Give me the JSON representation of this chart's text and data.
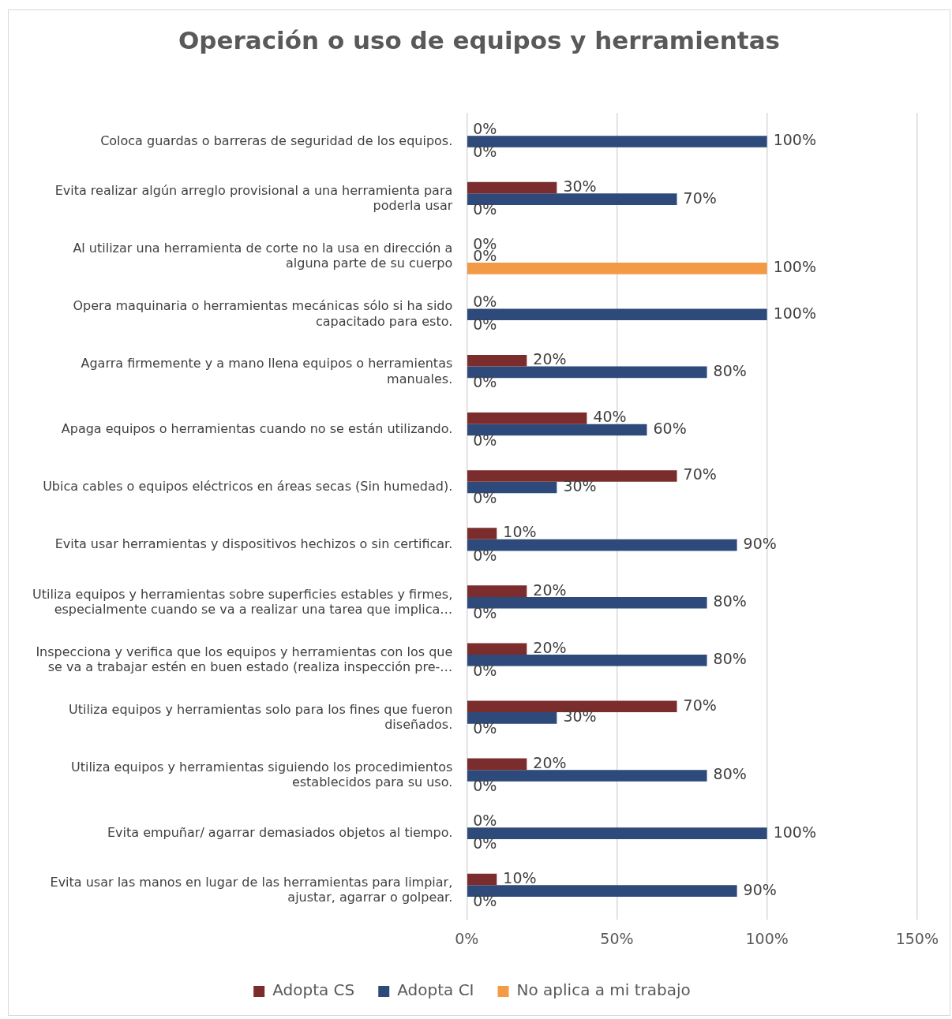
{
  "chart_data": {
    "type": "bar",
    "orientation": "horizontal",
    "title": "Operación o uso de equipos y herramientas",
    "categories": [
      "Coloca guardas o barreras de seguridad de los equipos.",
      "Evita realizar algún arreglo provisional a una herramienta para poderla usar",
      "Al utilizar una herramienta de corte no la usa en dirección a alguna parte de su cuerpo",
      "Opera maquinaria o herramientas mecánicas sólo si ha sido capacitado para esto.",
      "Agarra firmemente y a mano llena equipos o herramientas manuales.",
      "Apaga equipos o herramientas cuando no se están utilizando.",
      "Ubica cables o equipos eléctricos en áreas secas (Sin humedad).",
      "Evita usar herramientas y dispositivos hechizos o sin certificar.",
      "Utiliza equipos y herramientas sobre superficies estables y firmes, especialmente cuando se va a realizar una tarea que implica…",
      "Inspecciona y verifica que los equipos y herramientas con los que se va a trabajar estén en buen estado (realiza inspección pre-…",
      "Utiliza equipos y herramientas solo para los fines que fueron diseñados.",
      "Utiliza equipos y herramientas siguiendo los procedimientos establecidos para su uso.",
      "Evita empuñar/ agarrar demasiados objetos al tiempo.",
      "Evita usar las manos en lugar de las herramientas para limpiar, ajustar, agarrar o golpear."
    ],
    "series": [
      {
        "name": "Adopta CS",
        "color": "#7b2c2c",
        "values": [
          0,
          30,
          0,
          0,
          20,
          40,
          70,
          10,
          20,
          20,
          70,
          20,
          0,
          10
        ],
        "value_labels": [
          "0%",
          "30%",
          "0%",
          "0%",
          "20%",
          "40%",
          "70%",
          "10%",
          "20%",
          "20%",
          "70%",
          "20%",
          "0%",
          "10%"
        ]
      },
      {
        "name": "Adopta CI",
        "color": "#2e4a7a",
        "values": [
          100,
          70,
          0,
          100,
          80,
          60,
          30,
          90,
          80,
          80,
          30,
          80,
          100,
          90
        ],
        "value_labels": [
          "100%",
          "70%",
          "0%",
          "100%",
          "80%",
          "60%",
          "30%",
          "90%",
          "80%",
          "80%",
          "30%",
          "80%",
          "100%",
          "90%"
        ]
      },
      {
        "name": "No aplica a mi trabajo",
        "color": "#f29a45",
        "values": [
          0,
          0,
          100,
          0,
          0,
          0,
          0,
          0,
          0,
          0,
          0,
          0,
          0,
          0
        ],
        "value_labels": [
          "0%",
          "0%",
          "100%",
          "0%",
          "0%",
          "0%",
          "0%",
          "0%",
          "0%",
          "0%",
          "0%",
          "0%",
          "0%",
          "0%"
        ]
      }
    ],
    "xlim": [
      0,
      150
    ],
    "xticks": [
      {
        "value": 0,
        "label": "0%"
      },
      {
        "value": 50,
        "label": "50%"
      },
      {
        "value": 100,
        "label": "100%"
      },
      {
        "value": 150,
        "label": "150%"
      }
    ],
    "grid": "x",
    "legend": "bottom"
  }
}
